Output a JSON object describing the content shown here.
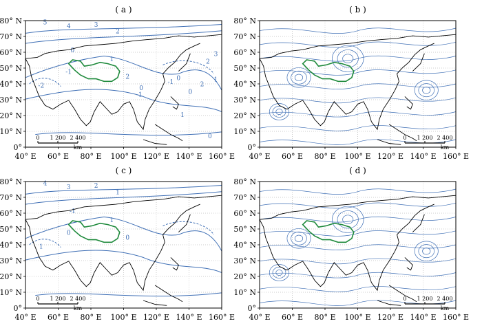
{
  "panels": [
    {
      "label": "( a )",
      "type": "contour",
      "contour_labels": [
        "5",
        "4",
        "3",
        "2",
        "0",
        "1",
        "-1",
        "-2",
        "2",
        "0",
        "-1",
        "0",
        "-1",
        "3",
        "2",
        "1",
        "2",
        "0",
        "1",
        "0"
      ]
    },
    {
      "label": "( b )",
      "type": "streamline"
    },
    {
      "label": "( c )",
      "type": "contour",
      "contour_labels": [
        "4",
        "3",
        "2",
        "1",
        "-1",
        "1",
        "0",
        "1",
        "0"
      ]
    },
    {
      "label": "( d )",
      "type": "streamline"
    }
  ],
  "lat_ticks": [
    "0°",
    "10° N",
    "20° N",
    "30° N",
    "40° N",
    "50° N",
    "60° N",
    "70° N",
    "80° N"
  ],
  "lon_ticks": [
    "40° E",
    "60° E",
    "80° E",
    "100° E",
    "120° E",
    "140° E",
    "160° E"
  ],
  "scale_bar": {
    "labels": [
      "0",
      "1 200",
      "2 400"
    ],
    "unit": "km"
  },
  "colors": {
    "contour": "#3f6fb5",
    "plateau": "#1f8a3c",
    "coast": "#000000",
    "grid": "#9a9a9a"
  }
}
